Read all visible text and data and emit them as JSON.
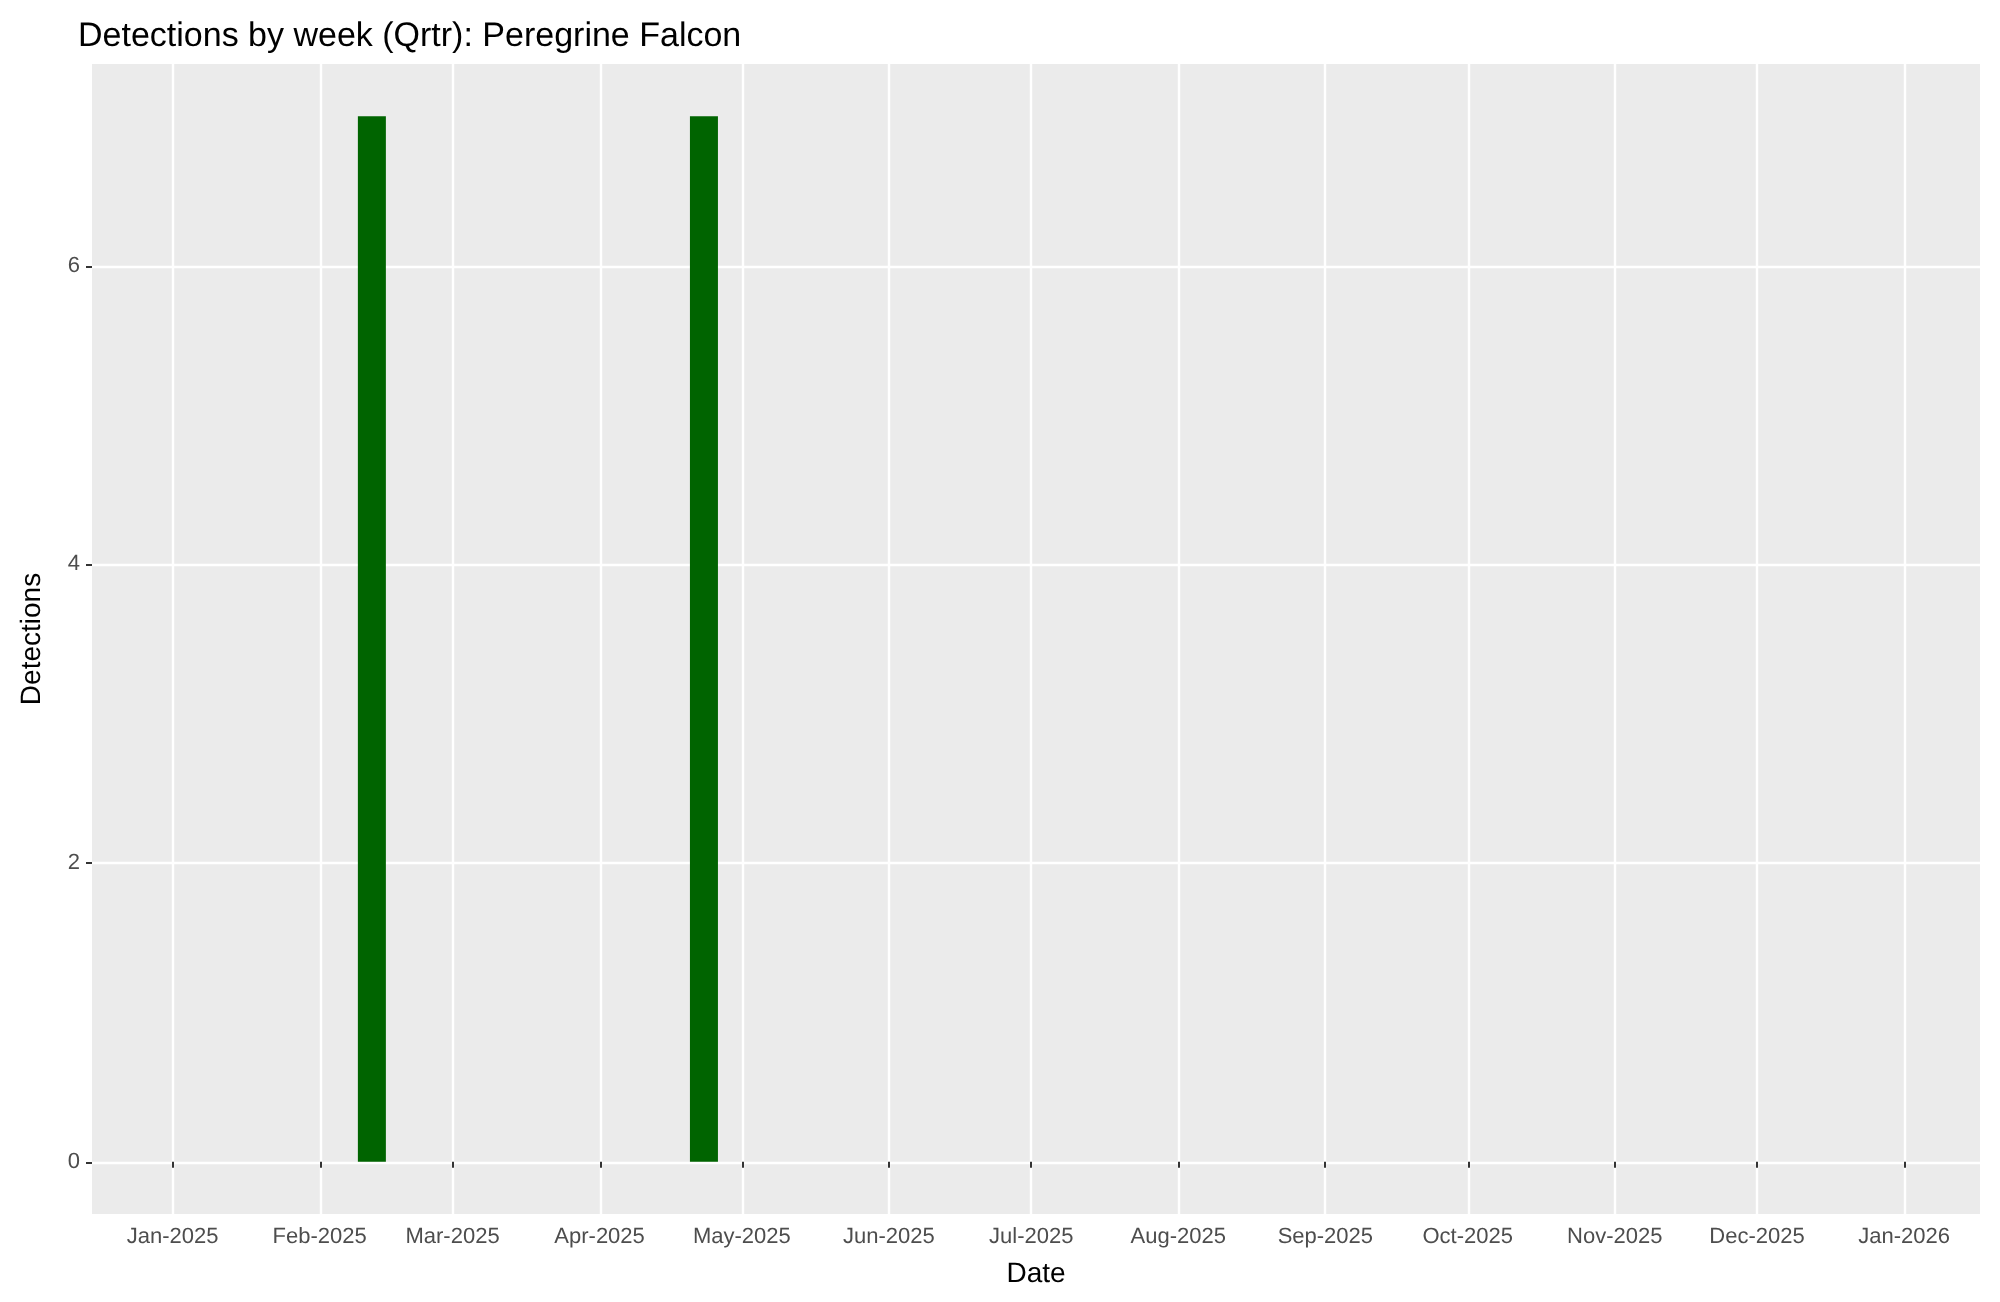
{
  "chart_data": {
    "type": "bar",
    "title": "Detections by week (Qrtr): Peregrine Falcon",
    "xlabel": "Date",
    "ylabel": "Detections",
    "x": [
      "2025-02-12",
      "2025-04-23"
    ],
    "values": [
      7,
      7
    ],
    "color": "#006400",
    "xlim": [
      "2024-12-15",
      "2026-01-17"
    ],
    "xticks": [
      {
        "value": "2025-01-01",
        "label": "Jan-2025"
      },
      {
        "value": "2025-02-01",
        "label": "Feb-2025"
      },
      {
        "value": "2025-03-01",
        "label": "Mar-2025"
      },
      {
        "value": "2025-04-01",
        "label": "Apr-2025"
      },
      {
        "value": "2025-05-01",
        "label": "May-2025"
      },
      {
        "value": "2025-06-01",
        "label": "Jun-2025"
      },
      {
        "value": "2025-07-01",
        "label": "Jul-2025"
      },
      {
        "value": "2025-08-01",
        "label": "Aug-2025"
      },
      {
        "value": "2025-09-01",
        "label": "Sep-2025"
      },
      {
        "value": "2025-10-01",
        "label": "Oct-2025"
      },
      {
        "value": "2025-11-01",
        "label": "Nov-2025"
      },
      {
        "value": "2025-12-01",
        "label": "Dec-2025"
      },
      {
        "value": "2026-01-01",
        "label": "Jan-2026"
      }
    ],
    "ylim": [
      -0.35,
      7.35
    ],
    "yticks": [
      0,
      2,
      4,
      6
    ],
    "grid": true
  }
}
